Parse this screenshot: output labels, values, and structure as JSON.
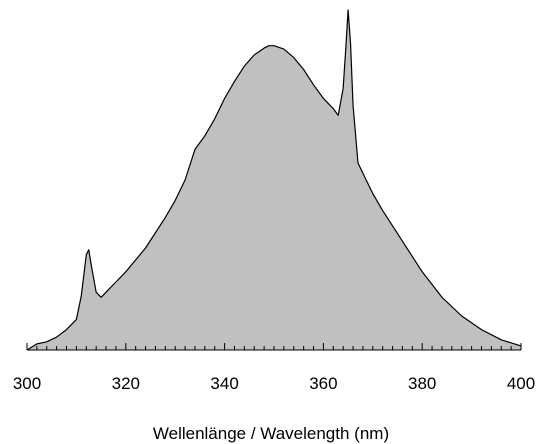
{
  "chart_data": {
    "type": "area",
    "title": "",
    "xlabel": "Wellenlänge / Wavelength (nm)",
    "ylabel": "",
    "xlim": [
      300,
      400
    ],
    "ylim": [
      0,
      1.0
    ],
    "grid": false,
    "x_ticks_major": [
      300,
      320,
      340,
      360,
      380,
      400
    ],
    "x_tick_labels": [
      "300",
      "320",
      "340",
      "360",
      "380",
      "400"
    ],
    "x_ticks_minor_step": 2,
    "fill_color": "#c0c0c0",
    "line_color": "#000000",
    "series": [
      {
        "points": [
          [
            300,
            0.0
          ],
          [
            302,
            0.018
          ],
          [
            304,
            0.024
          ],
          [
            306,
            0.038
          ],
          [
            308,
            0.06
          ],
          [
            310,
            0.09
          ],
          [
            311,
            0.16
          ],
          [
            312,
            0.28
          ],
          [
            312.5,
            0.295
          ],
          [
            313,
            0.25
          ],
          [
            314,
            0.17
          ],
          [
            315,
            0.155
          ],
          [
            316,
            0.17
          ],
          [
            318,
            0.2
          ],
          [
            320,
            0.23
          ],
          [
            324,
            0.3
          ],
          [
            328,
            0.39
          ],
          [
            330,
            0.44
          ],
          [
            332,
            0.5
          ],
          [
            334,
            0.59
          ],
          [
            336,
            0.63
          ],
          [
            338,
            0.68
          ],
          [
            340,
            0.74
          ],
          [
            342,
            0.79
          ],
          [
            344,
            0.835
          ],
          [
            346,
            0.868
          ],
          [
            348,
            0.888
          ],
          [
            349,
            0.895
          ],
          [
            350,
            0.895
          ],
          [
            352,
            0.885
          ],
          [
            354,
            0.86
          ],
          [
            356,
            0.825
          ],
          [
            358,
            0.78
          ],
          [
            360,
            0.74
          ],
          [
            362,
            0.71
          ],
          [
            363,
            0.69
          ],
          [
            364,
            0.77
          ],
          [
            364.5,
            0.88
          ],
          [
            365,
            1.0
          ],
          [
            365.5,
            0.9
          ],
          [
            366,
            0.72
          ],
          [
            367,
            0.55
          ],
          [
            368,
            0.52
          ],
          [
            370,
            0.46
          ],
          [
            372,
            0.41
          ],
          [
            376,
            0.32
          ],
          [
            380,
            0.23
          ],
          [
            384,
            0.155
          ],
          [
            388,
            0.1
          ],
          [
            392,
            0.06
          ],
          [
            396,
            0.03
          ],
          [
            400,
            0.012
          ]
        ]
      }
    ]
  }
}
